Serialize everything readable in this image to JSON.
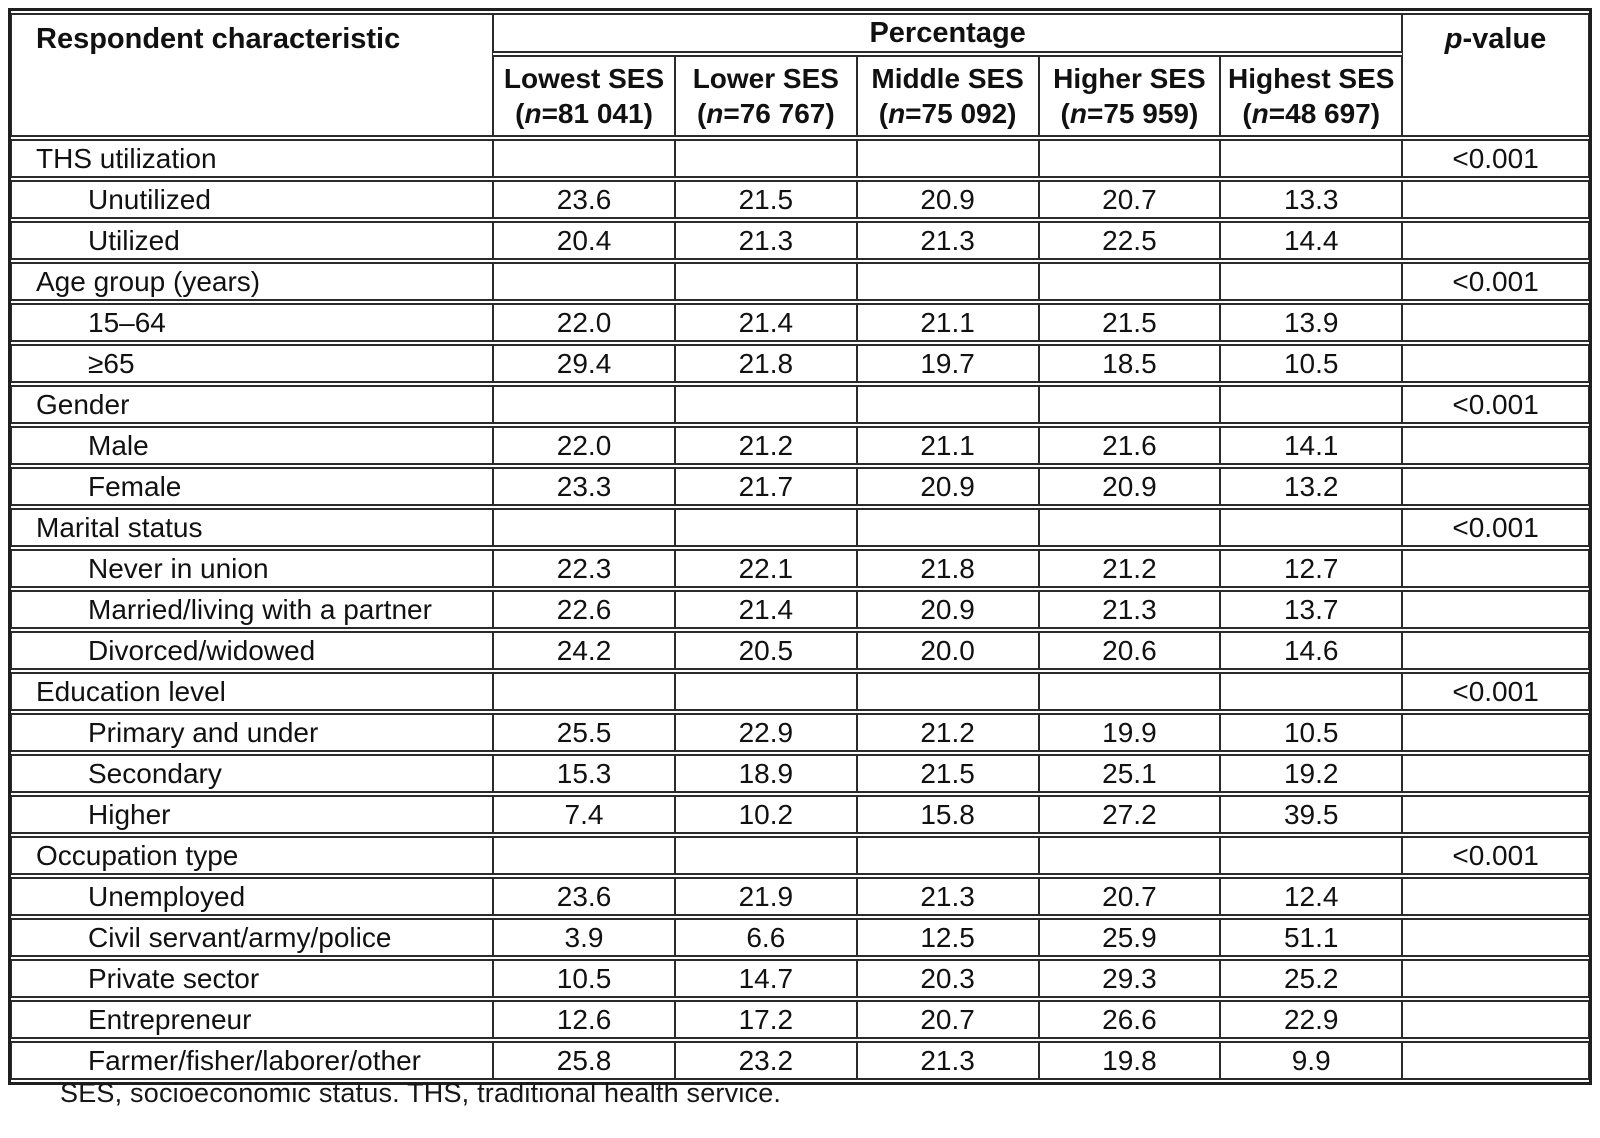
{
  "table": {
    "col1_header": "Respondent characteristic",
    "percentage_header": "Percentage",
    "pvalue_header": {
      "italic": "p",
      "rest": "-value"
    },
    "ses_columns": [
      {
        "name": "Lowest SES",
        "n_open": "(",
        "n_italic": "n",
        "n_rest": "=81 041)"
      },
      {
        "name": "Lower SES",
        "n_open": "(",
        "n_italic": "n",
        "n_rest": "=76 767)"
      },
      {
        "name": "Middle SES",
        "n_open": "(",
        "n_italic": "n",
        "n_rest": "=75 092)"
      },
      {
        "name": "Higher SES",
        "n_open": "(",
        "n_italic": "n",
        "n_rest": "=75 959)"
      },
      {
        "name": "Highest SES",
        "n_open": "(",
        "n_italic": "n",
        "n_rest": "=48 697)"
      }
    ],
    "rows": [
      {
        "label": "THS utilization",
        "indent": false,
        "values": [
          "",
          "",
          "",
          "",
          ""
        ],
        "p": "<0.001"
      },
      {
        "label": "Unutilized",
        "indent": true,
        "values": [
          "23.6",
          "21.5",
          "20.9",
          "20.7",
          "13.3"
        ],
        "p": ""
      },
      {
        "label": "Utilized",
        "indent": true,
        "values": [
          "20.4",
          "21.3",
          "21.3",
          "22.5",
          "14.4"
        ],
        "p": ""
      },
      {
        "label": "Age group (years)",
        "indent": false,
        "values": [
          "",
          "",
          "",
          "",
          ""
        ],
        "p": "<0.001"
      },
      {
        "label": "15–64",
        "indent": true,
        "values": [
          "22.0",
          "21.4",
          "21.1",
          "21.5",
          "13.9"
        ],
        "p": ""
      },
      {
        "label": "≥65",
        "indent": true,
        "values": [
          "29.4",
          "21.8",
          "19.7",
          "18.5",
          "10.5"
        ],
        "p": ""
      },
      {
        "label": "Gender",
        "indent": false,
        "values": [
          "",
          "",
          "",
          "",
          ""
        ],
        "p": "<0.001"
      },
      {
        "label": "Male",
        "indent": true,
        "values": [
          "22.0",
          "21.2",
          "21.1",
          "21.6",
          "14.1"
        ],
        "p": ""
      },
      {
        "label": "Female",
        "indent": true,
        "values": [
          "23.3",
          "21.7",
          "20.9",
          "20.9",
          "13.2"
        ],
        "p": ""
      },
      {
        "label": "Marital status",
        "indent": false,
        "values": [
          "",
          "",
          "",
          "",
          ""
        ],
        "p": "<0.001"
      },
      {
        "label": "Never in union",
        "indent": true,
        "values": [
          "22.3",
          "22.1",
          "21.8",
          "21.2",
          "12.7"
        ],
        "p": ""
      },
      {
        "label": "Married/living with a partner",
        "indent": true,
        "values": [
          "22.6",
          "21.4",
          "20.9",
          "21.3",
          "13.7"
        ],
        "p": ""
      },
      {
        "label": "Divorced/widowed",
        "indent": true,
        "values": [
          "24.2",
          "20.5",
          "20.0",
          "20.6",
          "14.6"
        ],
        "p": ""
      },
      {
        "label": "Education level",
        "indent": false,
        "values": [
          "",
          "",
          "",
          "",
          ""
        ],
        "p": "<0.001"
      },
      {
        "label": "Primary and under",
        "indent": true,
        "values": [
          "25.5",
          "22.9",
          "21.2",
          "19.9",
          "10.5"
        ],
        "p": ""
      },
      {
        "label": "Secondary",
        "indent": true,
        "values": [
          "15.3",
          "18.9",
          "21.5",
          "25.1",
          "19.2"
        ],
        "p": ""
      },
      {
        "label": "Higher",
        "indent": true,
        "values": [
          "7.4",
          "10.2",
          "15.8",
          "27.2",
          "39.5"
        ],
        "p": ""
      },
      {
        "label": "Occupation type",
        "indent": false,
        "values": [
          "",
          "",
          "",
          "",
          ""
        ],
        "p": "<0.001"
      },
      {
        "label": "Unemployed",
        "indent": true,
        "values": [
          "23.6",
          "21.9",
          "21.3",
          "20.7",
          "12.4"
        ],
        "p": ""
      },
      {
        "label": "Civil servant/army/police",
        "indent": true,
        "values": [
          "3.9",
          "6.6",
          "12.5",
          "25.9",
          "51.1"
        ],
        "p": ""
      },
      {
        "label": "Private sector",
        "indent": true,
        "values": [
          "10.5",
          "14.7",
          "20.3",
          "29.3",
          "25.2"
        ],
        "p": ""
      },
      {
        "label": "Entrepreneur",
        "indent": true,
        "values": [
          "12.6",
          "17.2",
          "20.7",
          "26.6",
          "22.9"
        ],
        "p": ""
      },
      {
        "label": "Farmer/fisher/laborer/other",
        "indent": true,
        "values": [
          "25.8",
          "23.2",
          "21.3",
          "19.8",
          "9.9"
        ],
        "p": ""
      }
    ]
  },
  "footnote": "SES, socioeconomic status. THS, traditional health service."
}
